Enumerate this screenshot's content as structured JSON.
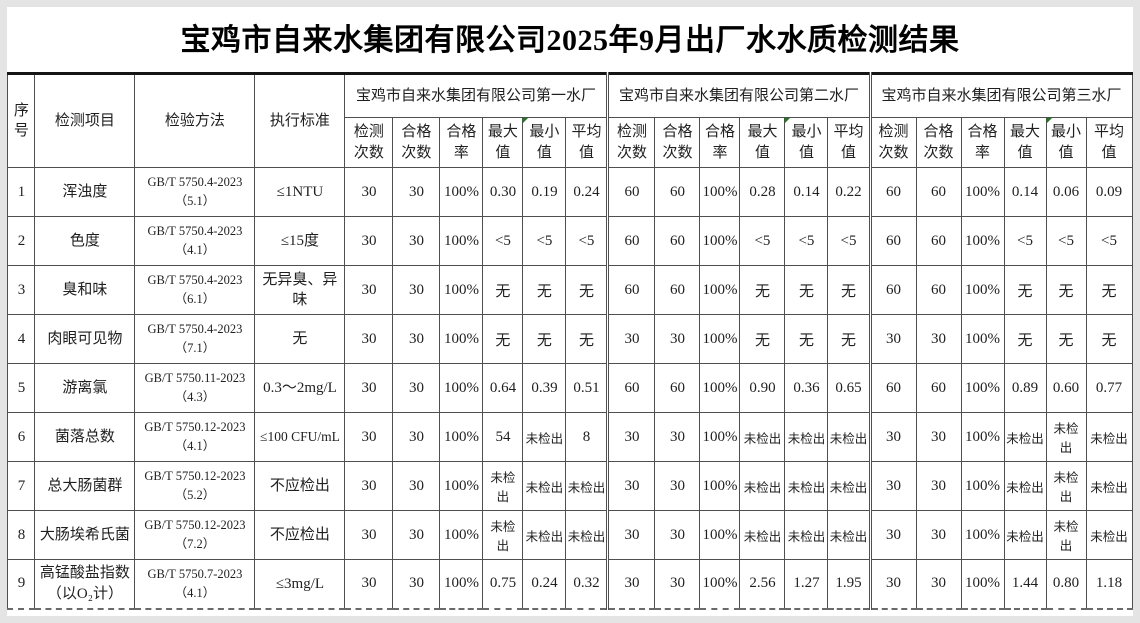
{
  "page": {
    "title": "宝鸡市自来水集团有限公司2025年9月出厂水水质检测结果"
  },
  "colors": {
    "table_border": "#4f4f4f",
    "title_text": "#000000",
    "error_flag_green": "#1f7a1f",
    "outer_frame": "#e4e4e4"
  },
  "table": {
    "left_headers": [
      "序号",
      "检测项目",
      "检验方法",
      "执行标准"
    ],
    "plant_groups": [
      "宝鸡市自来水集团有限公司第一水厂",
      "宝鸡市自来水集团有限公司第二水厂",
      "宝鸡市自来水集团有限公司第三水厂"
    ],
    "sub_headers": [
      "检测次数",
      "合格次数",
      "合格率",
      "最大值",
      "最小值",
      "平均值"
    ],
    "rows": [
      {
        "no": "1",
        "item": "浑浊度",
        "method": "GB/T 5750.4-2023\n（5.1）",
        "standard": "≤1NTU",
        "plants": [
          [
            "30",
            "30",
            "100%",
            "0.30",
            "0.19",
            "0.24"
          ],
          [
            "60",
            "60",
            "100%",
            "0.28",
            "0.14",
            "0.22"
          ],
          [
            "60",
            "60",
            "100%",
            "0.14",
            "0.06",
            "0.09"
          ]
        ]
      },
      {
        "no": "2",
        "item": "色度",
        "method": "GB/T 5750.4-2023\n（4.1）",
        "standard": "≤15度",
        "plants": [
          [
            "30",
            "30",
            "100%",
            "<5",
            "<5",
            "<5"
          ],
          [
            "60",
            "60",
            "100%",
            "<5",
            "<5",
            "<5"
          ],
          [
            "60",
            "60",
            "100%",
            "<5",
            "<5",
            "<5"
          ]
        ]
      },
      {
        "no": "3",
        "item": "臭和味",
        "method": "GB/T 5750.4-2023\n（6.1）",
        "standard": "无异臭、异味",
        "plants": [
          [
            "30",
            "30",
            "100%",
            "无",
            "无",
            "无"
          ],
          [
            "60",
            "60",
            "100%",
            "无",
            "无",
            "无"
          ],
          [
            "60",
            "60",
            "100%",
            "无",
            "无",
            "无"
          ]
        ]
      },
      {
        "no": "4",
        "item": "肉眼可见物",
        "method": "GB/T 5750.4-2023\n（7.1）",
        "standard": "无",
        "plants": [
          [
            "30",
            "30",
            "100%",
            "无",
            "无",
            "无"
          ],
          [
            "30",
            "30",
            "100%",
            "无",
            "无",
            "无"
          ],
          [
            "30",
            "30",
            "100%",
            "无",
            "无",
            "无"
          ]
        ]
      },
      {
        "no": "5",
        "item": "游离氯",
        "method": "GB/T 5750.11-2023\n（4.3）",
        "standard": "0.3～2mg/L",
        "plants": [
          [
            "30",
            "30",
            "100%",
            "0.64",
            "0.39",
            "0.51"
          ],
          [
            "60",
            "60",
            "100%",
            "0.90",
            "0.36",
            "0.65"
          ],
          [
            "60",
            "60",
            "100%",
            "0.89",
            "0.60",
            "0.77"
          ]
        ]
      },
      {
        "no": "6",
        "item": "菌落总数",
        "method": "GB/T 5750.12-2023\n（4.1）",
        "standard": "≤100 CFU/mL",
        "plants": [
          [
            "30",
            "30",
            "100%",
            "54",
            "未检出",
            "8"
          ],
          [
            "30",
            "30",
            "100%",
            "未检出",
            "未检出",
            "未检出"
          ],
          [
            "30",
            "30",
            "100%",
            "未检出",
            "未检出",
            "未检出"
          ]
        ]
      },
      {
        "no": "7",
        "item": "总大肠菌群",
        "method": "GB/T 5750.12-2023\n（5.2）",
        "standard": "不应检出",
        "plants": [
          [
            "30",
            "30",
            "100%",
            "未检出",
            "未检出",
            "未检出"
          ],
          [
            "30",
            "30",
            "100%",
            "未检出",
            "未检出",
            "未检出"
          ],
          [
            "30",
            "30",
            "100%",
            "未检出",
            "未检出",
            "未检出"
          ]
        ]
      },
      {
        "no": "8",
        "item": "大肠埃希氏菌",
        "method": "GB/T 5750.12-2023\n（7.2）",
        "standard": "不应检出",
        "plants": [
          [
            "30",
            "30",
            "100%",
            "未检出",
            "未检出",
            "未检出"
          ],
          [
            "30",
            "30",
            "100%",
            "未检出",
            "未检出",
            "未检出"
          ],
          [
            "30",
            "30",
            "100%",
            "未检出",
            "未检出",
            "未检出"
          ]
        ]
      },
      {
        "no": "9",
        "item": "高锰酸盐指数\n（以O₂计）",
        "method": "GB/T 5750.7-2023\n（4.1）",
        "standard": "≤3mg/L",
        "plants": [
          [
            "30",
            "30",
            "100%",
            "0.75",
            "0.24",
            "0.32"
          ],
          [
            "30",
            "30",
            "100%",
            "2.56",
            "1.27",
            "1.95"
          ],
          [
            "30",
            "30",
            "100%",
            "1.44",
            "0.80",
            "1.18"
          ]
        ]
      }
    ]
  }
}
